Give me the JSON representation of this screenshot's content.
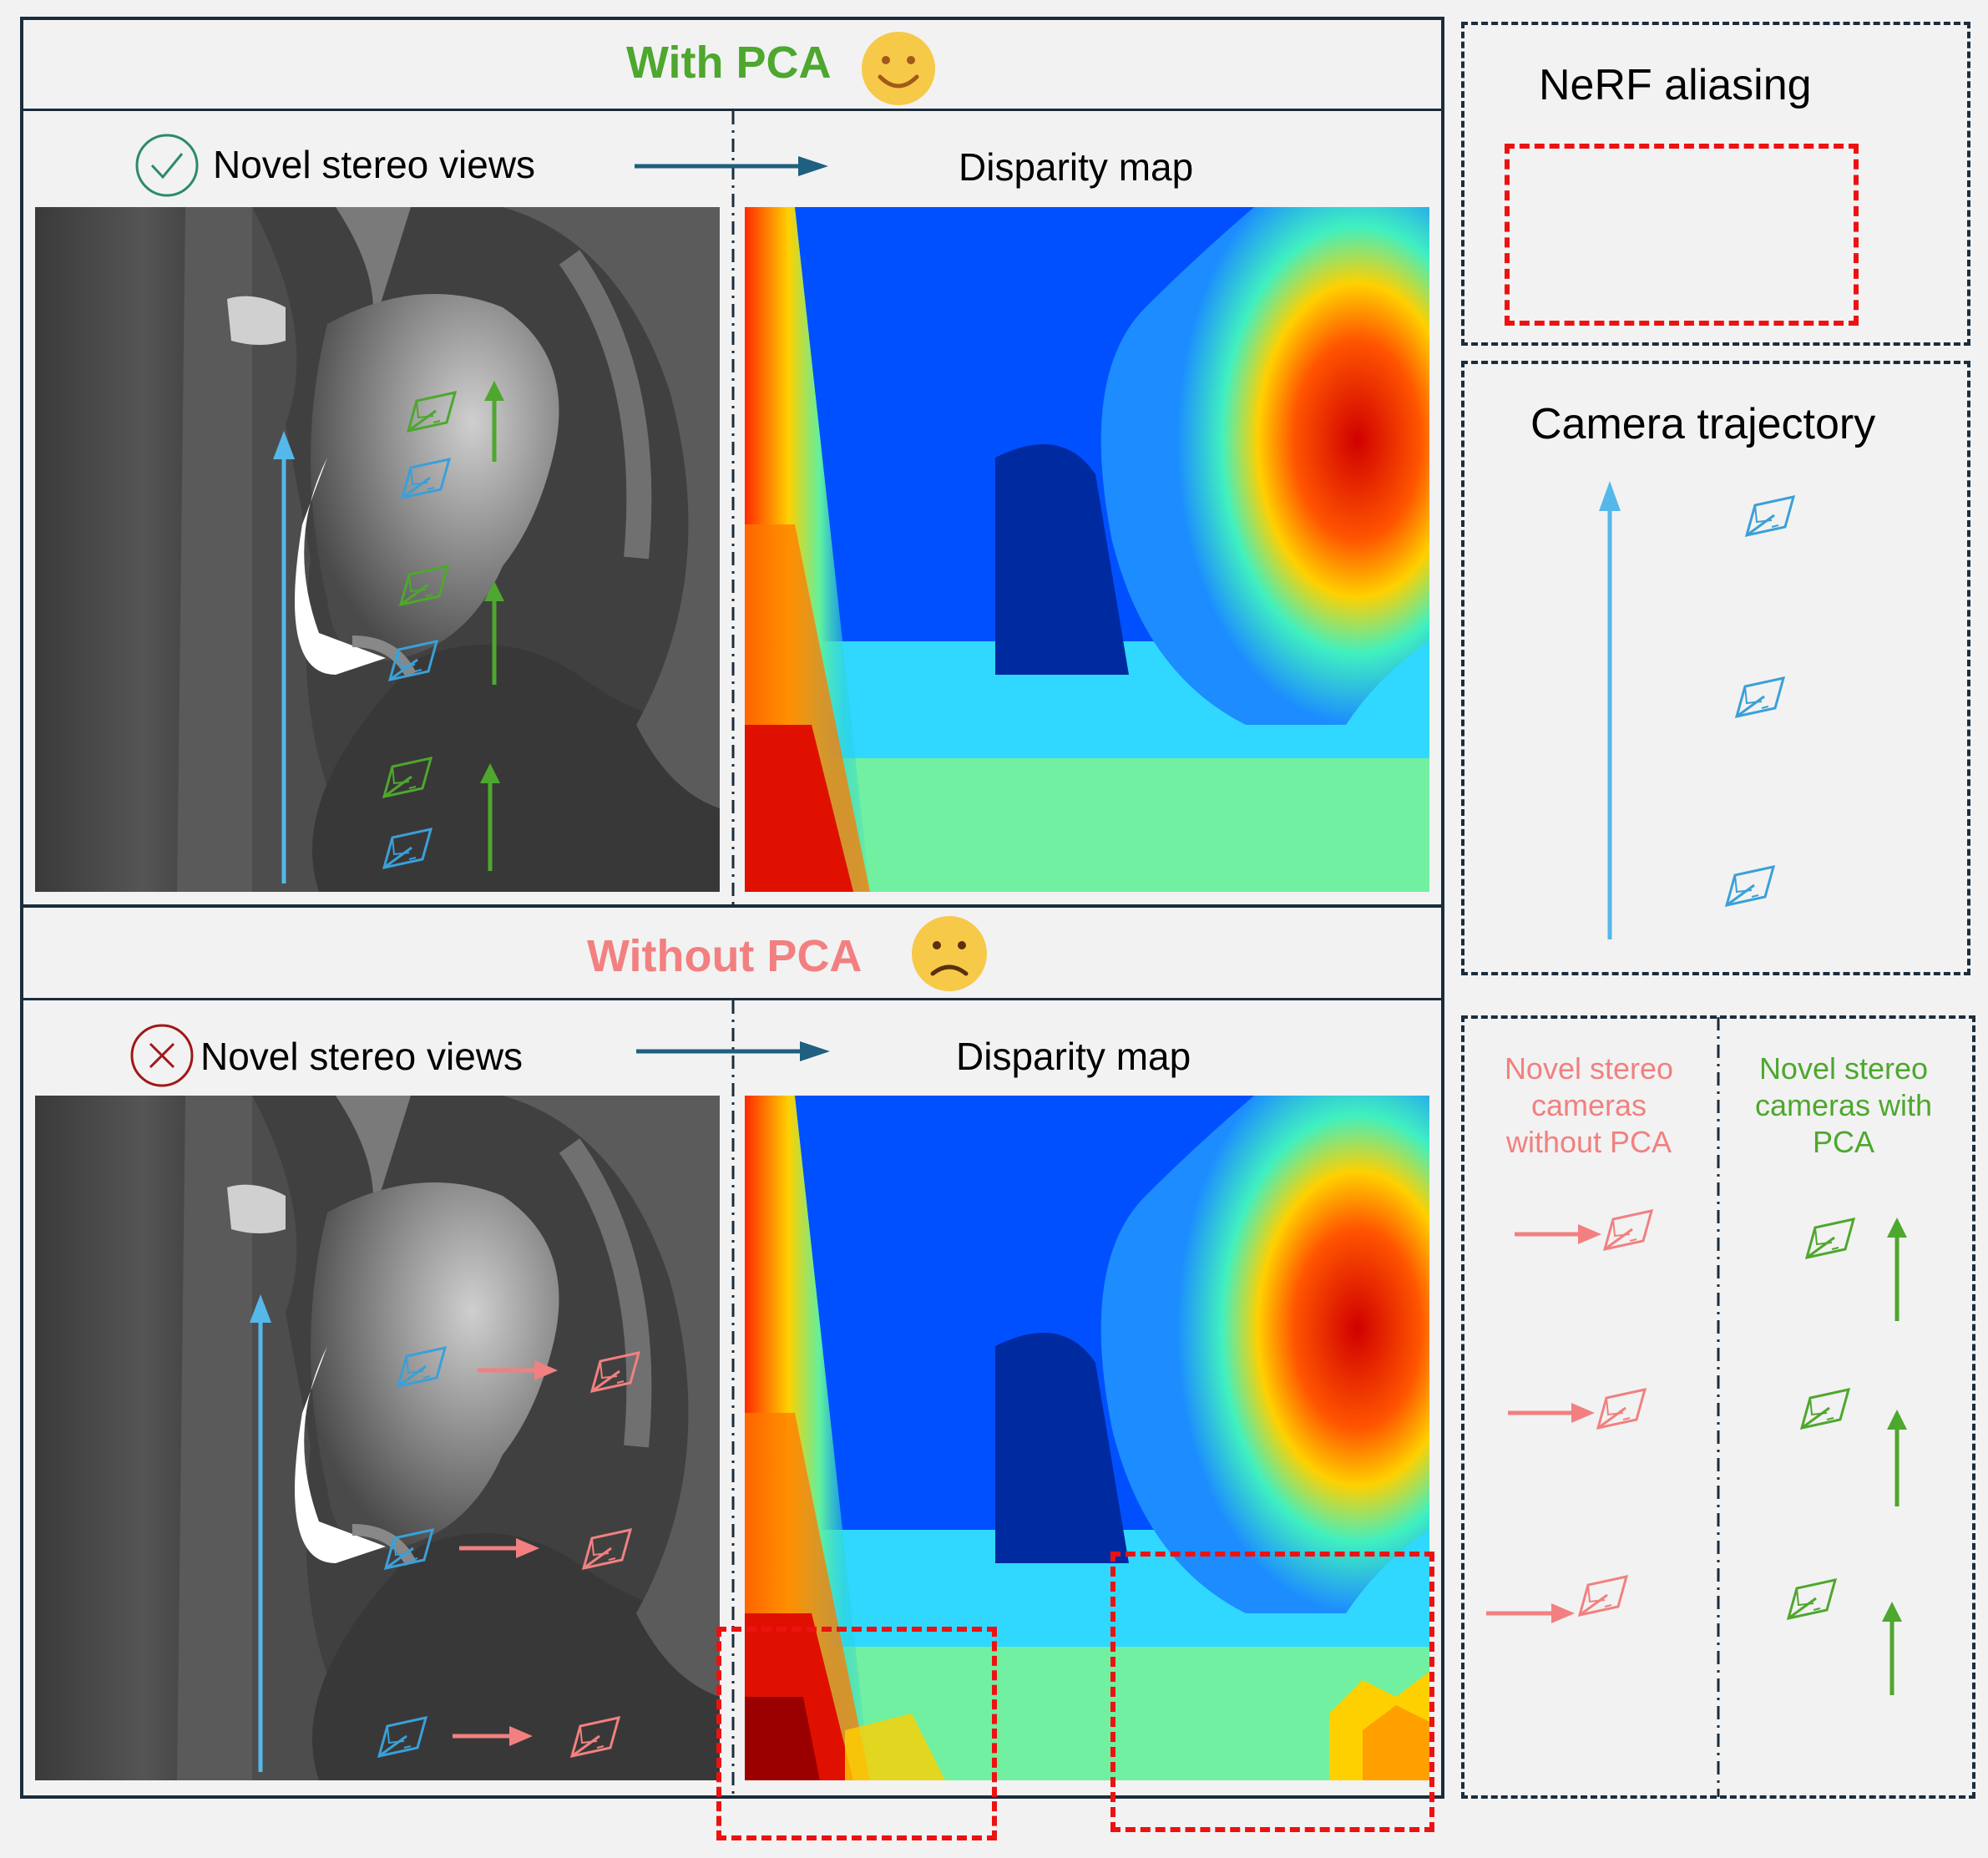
{
  "panels": {
    "with_pca": {
      "title": "With PCA",
      "title_color": "#4ea72e",
      "face": "happy",
      "left_label": "Novel stereo views",
      "status_icon": "check-circle-icon",
      "right_label": "Disparity map"
    },
    "without_pca": {
      "title": "Without PCA",
      "title_color": "#f28080",
      "face": "sad",
      "left_label": "Novel stereo views",
      "status_icon": "cross-circle-icon",
      "right_label": "Disparity map"
    }
  },
  "legend": {
    "aliasing": {
      "title": "NeRF aliasing",
      "color": "#ee1111"
    },
    "trajectory": {
      "title": "Camera trajectory",
      "color": "#55b8ea"
    },
    "without_pca": {
      "lines": [
        "Novel stereo",
        "cameras",
        "without PCA"
      ],
      "color": "#f28080"
    },
    "with_pca": {
      "lines": [
        "Novel stereo",
        "cameras with",
        "PCA"
      ],
      "color": "#4ea72e"
    }
  },
  "colors": {
    "blue_camera": "#3aa0d8",
    "green_camera": "#4ea72e",
    "pink_camera": "#f28080",
    "flow_arrow": "#1f5f80",
    "frame": "#1c2d3c"
  }
}
